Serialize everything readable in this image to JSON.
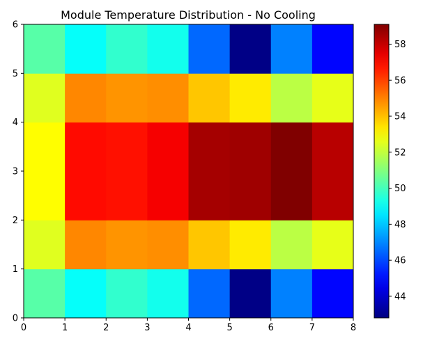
{
  "chart_data": {
    "type": "heatmap",
    "title": "Module Temperature Distribution - No Cooling",
    "xlabel": "",
    "ylabel": "",
    "xlim": [
      0,
      8
    ],
    "ylim": [
      0,
      6
    ],
    "x_ticks": [
      "0",
      "1",
      "2",
      "3",
      "4",
      "5",
      "6",
      "7",
      "8"
    ],
    "y_ticks": [
      "0",
      "1",
      "2",
      "3",
      "4",
      "5",
      "6"
    ],
    "colormap": "jet",
    "colorbar": {
      "range": [
        42.8,
        59.1
      ],
      "ticks": [
        "44",
        "46",
        "48",
        "50",
        "52",
        "54",
        "56",
        "58"
      ]
    },
    "rows_bottom_to_top": [
      [
        50.3,
        49.0,
        49.7,
        49.2,
        46.5,
        42.9,
        46.9,
        44.9
      ],
      [
        52.5,
        54.9,
        54.7,
        54.8,
        53.9,
        53.3,
        51.9,
        52.6
      ],
      [
        53.0,
        56.9,
        56.8,
        57.2,
        58.5,
        58.6,
        59.1,
        58.2
      ],
      [
        53.0,
        56.9,
        56.8,
        57.2,
        58.5,
        58.6,
        59.1,
        58.2
      ],
      [
        52.5,
        54.9,
        54.7,
        54.8,
        53.9,
        53.3,
        51.9,
        52.6
      ],
      [
        50.3,
        49.0,
        49.7,
        49.2,
        46.5,
        42.9,
        46.9,
        44.9
      ]
    ]
  }
}
